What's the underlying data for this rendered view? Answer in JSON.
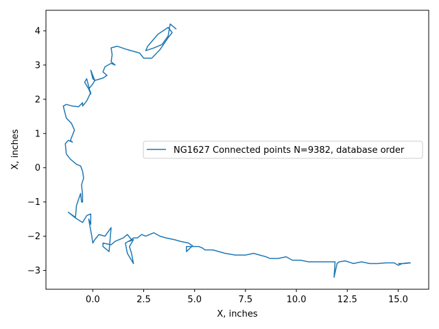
{
  "chart_data": {
    "type": "line",
    "title": "",
    "xlabel": "X, inches",
    "ylabel": "X, inches",
    "xlim": [
      -2.3,
      16.5
    ],
    "ylim": [
      -3.55,
      4.6
    ],
    "xticks": [
      0.0,
      2.5,
      5.0,
      7.5,
      10.0,
      12.5,
      15.0
    ],
    "xtick_labels": [
      "0.0",
      "2.5",
      "5.0",
      "7.5",
      "10.0",
      "12.5",
      "15.0"
    ],
    "yticks": [
      -3,
      -2,
      -1,
      0,
      1,
      2,
      3,
      4
    ],
    "ytick_labels": [
      "−3",
      "−2",
      "−1",
      "0",
      "1",
      "2",
      "3",
      "4"
    ],
    "grid": false,
    "legend_position": "center-right",
    "series": [
      {
        "name": "NG1627 Connected points N=9382, database order",
        "color": "#1f77b4",
        "x": [
          4.1,
          3.8,
          3.7,
          3.4,
          3.0,
          2.6,
          2.7,
          3.2,
          3.7,
          3.9,
          3.7,
          3.3,
          2.9,
          2.5,
          2.3,
          1.7,
          1.2,
          0.9,
          0.95,
          0.9,
          1.1,
          0.9,
          0.6,
          0.5,
          0.7,
          0.5,
          0.1,
          -0.1,
          0.0,
          0.1,
          0.0,
          -0.2,
          -0.1,
          -0.3,
          -0.4,
          -0.1,
          -0.3,
          -0.5,
          -0.5,
          -0.7,
          -1.0,
          -1.3,
          -1.45,
          -1.3,
          -1.05,
          -0.9,
          -1.1,
          -1.0,
          -1.2,
          -1.35,
          -1.3,
          -1.1,
          -0.8,
          -0.6,
          -0.5,
          -0.45,
          -0.55,
          -0.5,
          -0.5,
          -0.55,
          -0.6,
          -0.8,
          -0.85,
          -1.2,
          -0.9,
          -0.5,
          -0.3,
          -0.1,
          -0.1,
          -0.2,
          -0.05,
          0.0,
          0.1,
          0.3,
          0.6,
          0.9,
          0.8,
          0.5,
          0.5,
          0.9,
          1.1,
          1.5,
          1.7,
          1.9,
          1.6,
          1.7,
          2.0,
          1.9,
          1.8,
          2.0,
          1.8,
          2.0,
          2.2,
          2.4,
          2.6,
          3.0,
          3.3,
          3.6,
          4.0,
          4.3,
          4.7,
          4.9,
          4.6,
          4.6,
          5.2,
          5.4,
          5.5,
          5.9,
          6.5,
          7.0,
          7.5,
          7.9,
          8.2,
          8.5,
          8.7,
          9.1,
          9.5,
          9.8,
          10.2,
          10.6,
          11.0,
          11.5,
          11.9,
          11.85,
          12.0,
          12.1,
          12.4,
          12.8,
          13.2,
          13.6,
          14.0,
          14.4,
          14.8,
          15.0,
          15.2,
          15.5,
          15.6,
          15.3,
          15.0
        ],
        "y": [
          4.05,
          4.2,
          3.85,
          3.6,
          3.5,
          3.42,
          3.55,
          3.9,
          4.1,
          3.95,
          3.8,
          3.45,
          3.2,
          3.2,
          3.35,
          3.45,
          3.55,
          3.5,
          3.3,
          3.1,
          3.0,
          3.05,
          2.95,
          2.8,
          2.7,
          2.62,
          2.55,
          2.85,
          2.6,
          2.55,
          2.45,
          2.3,
          2.15,
          2.6,
          2.5,
          2.2,
          1.95,
          1.8,
          1.9,
          1.78,
          1.8,
          1.85,
          1.8,
          1.45,
          1.3,
          1.1,
          0.8,
          0.75,
          0.8,
          0.7,
          0.4,
          0.25,
          0.1,
          0.05,
          -0.1,
          -0.3,
          -0.5,
          -0.8,
          -1.0,
          -1.0,
          -0.75,
          -1.1,
          -1.45,
          -1.3,
          -1.45,
          -1.6,
          -1.4,
          -1.35,
          -1.65,
          -1.5,
          -2.0,
          -2.2,
          -2.1,
          -1.95,
          -2.0,
          -1.75,
          -2.45,
          -2.3,
          -2.2,
          -2.25,
          -2.15,
          -2.05,
          -1.95,
          -2.1,
          -2.2,
          -2.5,
          -2.8,
          -2.5,
          -2.3,
          -2.1,
          -2.15,
          -2.05,
          -2.05,
          -1.95,
          -2.0,
          -1.9,
          -2.0,
          -2.05,
          -2.1,
          -2.15,
          -2.2,
          -2.28,
          -2.45,
          -2.3,
          -2.3,
          -2.35,
          -2.4,
          -2.4,
          -2.5,
          -2.55,
          -2.55,
          -2.5,
          -2.55,
          -2.6,
          -2.65,
          -2.65,
          -2.6,
          -2.7,
          -2.7,
          -2.75,
          -2.75,
          -2.75,
          -2.75,
          -3.2,
          -2.8,
          -2.75,
          -2.72,
          -2.8,
          -2.75,
          -2.8,
          -2.8,
          -2.78,
          -2.78,
          -2.85,
          -2.8,
          -2.78,
          -2.78,
          -2.8,
          -2.8
        ]
      }
    ]
  }
}
